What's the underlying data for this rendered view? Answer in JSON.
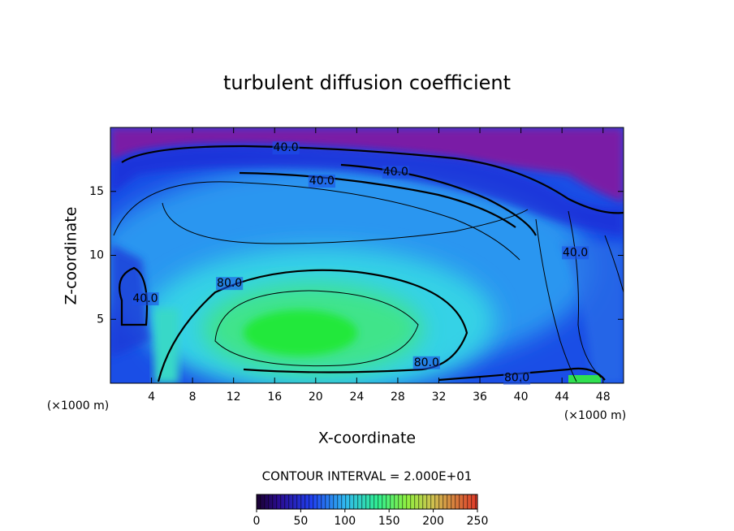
{
  "chart_data": {
    "type": "contour",
    "title": "turbulent diffusion coefficient",
    "x_label": "X-coordinate",
    "y_label": "Z-coordinate",
    "x_unit_label": "(×1000 m)",
    "xlim": [
      0,
      50
    ],
    "xticks": [
      4,
      8,
      12,
      16,
      20,
      24,
      28,
      32,
      36,
      40,
      44,
      48
    ],
    "ylim": [
      0,
      20
    ],
    "yticks": [
      5,
      10,
      15
    ],
    "contour_labels": [
      {
        "label": "40.0",
        "x": 17.1,
        "y": 18.4
      },
      {
        "label": "40.0",
        "x": 27.8,
        "y": 16.5
      },
      {
        "label": "40.0",
        "x": 20.6,
        "y": 15.8
      },
      {
        "label": "40.0",
        "x": 3.4,
        "y": 6.6
      },
      {
        "label": "40.0",
        "x": 45.3,
        "y": 10.2
      },
      {
        "label": "80.0",
        "x": 11.6,
        "y": 7.8
      },
      {
        "label": "80.0",
        "x": 30.8,
        "y": 1.6
      },
      {
        "label": "80.0",
        "x": 39.6,
        "y": 0.4
      }
    ],
    "contour_interval_label": "CONTOUR INTERVAL = 2.000E+01",
    "colorbar": {
      "lim": [
        0,
        250
      ],
      "ticks": [
        0,
        50,
        100,
        150,
        200,
        250
      ]
    }
  }
}
